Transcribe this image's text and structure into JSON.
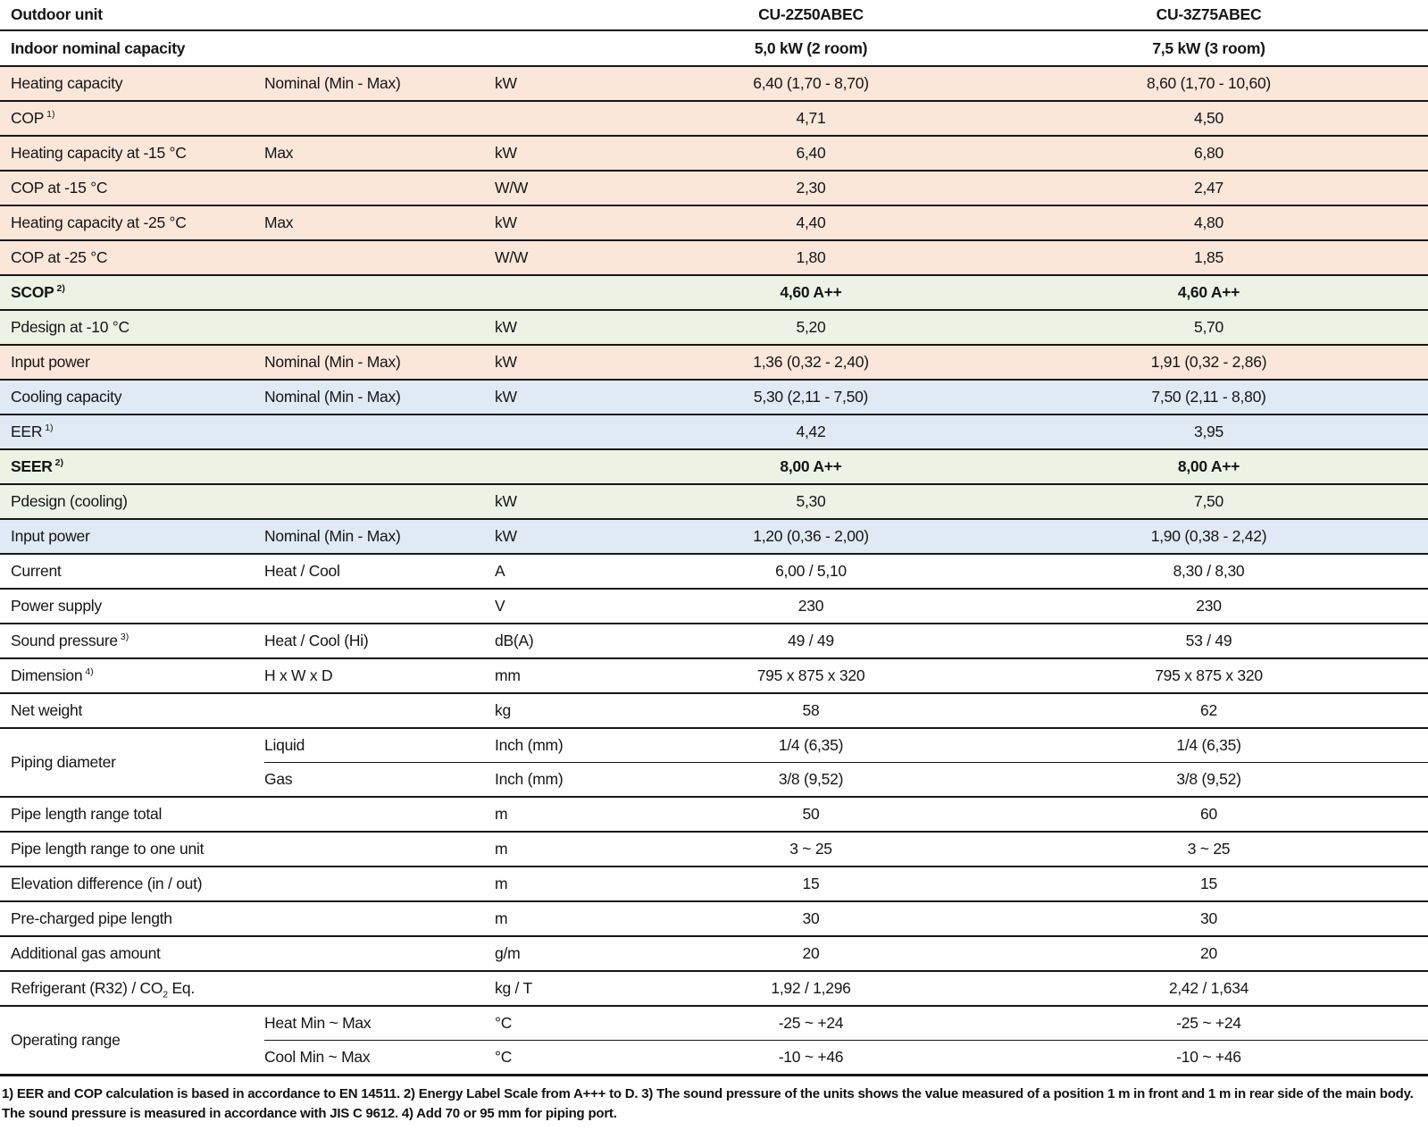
{
  "colors": {
    "peach": "#fbe6da",
    "green": "#ecf2e4",
    "blue": "#dfeaf4",
    "white": "#ffffff"
  },
  "header": {
    "outdoor_unit_label": "Outdoor unit",
    "model_a": "CU-2Z50ABEC",
    "model_b": "CU-3Z75ABEC",
    "indoor_capacity_label": "Indoor nominal capacity",
    "capacity_a": "5,0 kW (2 room)",
    "capacity_b": "7,5 kW (3 room)"
  },
  "rows": [
    {
      "label": "Heating capacity",
      "sub": "Nominal (Min - Max)",
      "unit": "kW",
      "a": "6,40 (1,70 - 8,70)",
      "b": "8,60 (1,70 - 10,60)",
      "bg": "peach"
    },
    {
      "label": "COP",
      "label_sup": "1)",
      "sub": "",
      "unit": "",
      "a": "4,71",
      "b": "4,50",
      "bg": "peach"
    },
    {
      "label": "Heating capacity at -15 °C",
      "sub": "Max",
      "unit": "kW",
      "a": "6,40",
      "b": "6,80",
      "bg": "peach"
    },
    {
      "label": "COP at -15 °C",
      "sub": "",
      "unit": "W/W",
      "a": "2,30",
      "b": "2,47",
      "bg": "peach"
    },
    {
      "label": "Heating capacity at -25 °C",
      "sub": "Max",
      "unit": "kW",
      "a": "4,40",
      "b": "4,80",
      "bg": "peach"
    },
    {
      "label": "COP at -25 °C",
      "sub": "",
      "unit": "W/W",
      "a": "1,80",
      "b": "1,85",
      "bg": "peach"
    },
    {
      "label": "SCOP",
      "label_sup": "2)",
      "bold": true,
      "sub": "",
      "unit": "",
      "a": "4,60 A++",
      "b": "4,60 A++",
      "bg": "green"
    },
    {
      "label": "Pdesign at -10 °C",
      "sub": "",
      "unit": "kW",
      "a": "5,20",
      "b": "5,70",
      "bg": "green"
    },
    {
      "label": "Input power",
      "sub": "Nominal (Min - Max)",
      "unit": "kW",
      "a": "1,36 (0,32 - 2,40)",
      "b": "1,91 (0,32 - 2,86)",
      "bg": "peach"
    },
    {
      "label": "Cooling capacity",
      "sub": "Nominal (Min - Max)",
      "unit": "kW",
      "a": "5,30 (2,11 - 7,50)",
      "b": "7,50 (2,11 - 8,80)",
      "bg": "blue"
    },
    {
      "label": "EER",
      "label_sup": "1)",
      "sub": "",
      "unit": "",
      "a": "4,42",
      "b": "3,95",
      "bg": "blue"
    },
    {
      "label": "SEER",
      "label_sup": "2)",
      "bold": true,
      "sub": "",
      "unit": "",
      "a": "8,00 A++",
      "b": "8,00 A++",
      "bg": "green"
    },
    {
      "label": "Pdesign (cooling)",
      "sub": "",
      "unit": "kW",
      "a": "5,30",
      "b": "7,50",
      "bg": "green"
    },
    {
      "label": "Input power",
      "sub": "Nominal (Min - Max)",
      "unit": "kW",
      "a": "1,20 (0,36 - 2,00)",
      "b": "1,90 (0,38 - 2,42)",
      "bg": "blue"
    },
    {
      "label": "Current",
      "sub": "Heat / Cool",
      "unit": "A",
      "a": "6,00 / 5,10",
      "b": "8,30 / 8,30",
      "bg": "white"
    },
    {
      "label": "Power supply",
      "sub": "",
      "unit": "V",
      "a": "230",
      "b": "230",
      "bg": "white"
    },
    {
      "label": "Sound pressure",
      "label_sup": "3)",
      "sub": "Heat / Cool (Hi)",
      "unit": "dB(A)",
      "a": "49 / 49",
      "b": "53 / 49",
      "bg": "white"
    },
    {
      "label": "Dimension",
      "label_sup": "4)",
      "sub": "H x W x D",
      "unit": "mm",
      "a": "795 x 875 x 320",
      "b": "795 x 875 x 320",
      "bg": "white"
    },
    {
      "label": "Net weight",
      "sub": "",
      "unit": "kg",
      "a": "58",
      "b": "62",
      "bg": "white"
    },
    {
      "label": "Piping diameter",
      "bg": "white",
      "items": [
        {
          "sub": "Liquid",
          "unit": "Inch (mm)",
          "a": "1/4 (6,35)",
          "b": "1/4 (6,35)"
        },
        {
          "sub": "Gas",
          "unit": "Inch (mm)",
          "a": "3/8 (9,52)",
          "b": "3/8 (9,52)"
        }
      ]
    },
    {
      "label": "Pipe length range total",
      "sub": "",
      "unit": "m",
      "a": "50",
      "b": "60",
      "bg": "white"
    },
    {
      "label": "Pipe length range to one unit",
      "sub": "",
      "unit": "m",
      "a": "3 ~ 25",
      "b": "3 ~ 25",
      "bg": "white"
    },
    {
      "label": "Elevation difference (in / out)",
      "sub": "",
      "unit": "m",
      "a": "15",
      "b": "15",
      "bg": "white"
    },
    {
      "label": "Pre-charged pipe length",
      "sub": "",
      "unit": "m",
      "a": "30",
      "b": "30",
      "bg": "white"
    },
    {
      "label": "Additional gas amount",
      "sub": "",
      "unit": "g/m",
      "a": "20",
      "b": "20",
      "bg": "white"
    },
    {
      "label": "Refrigerant (R32) / CO",
      "label_sub2": "2",
      "label_tail": " Eq.",
      "sub": "",
      "unit": "kg / T",
      "a": "1,92 / 1,296",
      "b": "2,42 / 1,634",
      "bg": "white"
    },
    {
      "label": "Operating range",
      "bg": "white",
      "items": [
        {
          "sub": "Heat Min ~ Max",
          "unit": "°C",
          "a": "-25 ~ +24",
          "b": "-25 ~ +24"
        },
        {
          "sub": "Cool Min ~ Max",
          "unit": "°C",
          "a": "-10 ~ +46",
          "b": "-10 ~ +46"
        }
      ]
    }
  ],
  "footnote": "1) EER and COP calculation is based in accordance to EN 14511. 2) Energy Label Scale from A+++ to D. 3) The sound pressure of the units shows the value measured of a position 1 m in front and 1 m in rear side of the main body. The sound pressure is measured in accordance with JIS C 9612. 4) Add 70 or 95 mm for piping port."
}
